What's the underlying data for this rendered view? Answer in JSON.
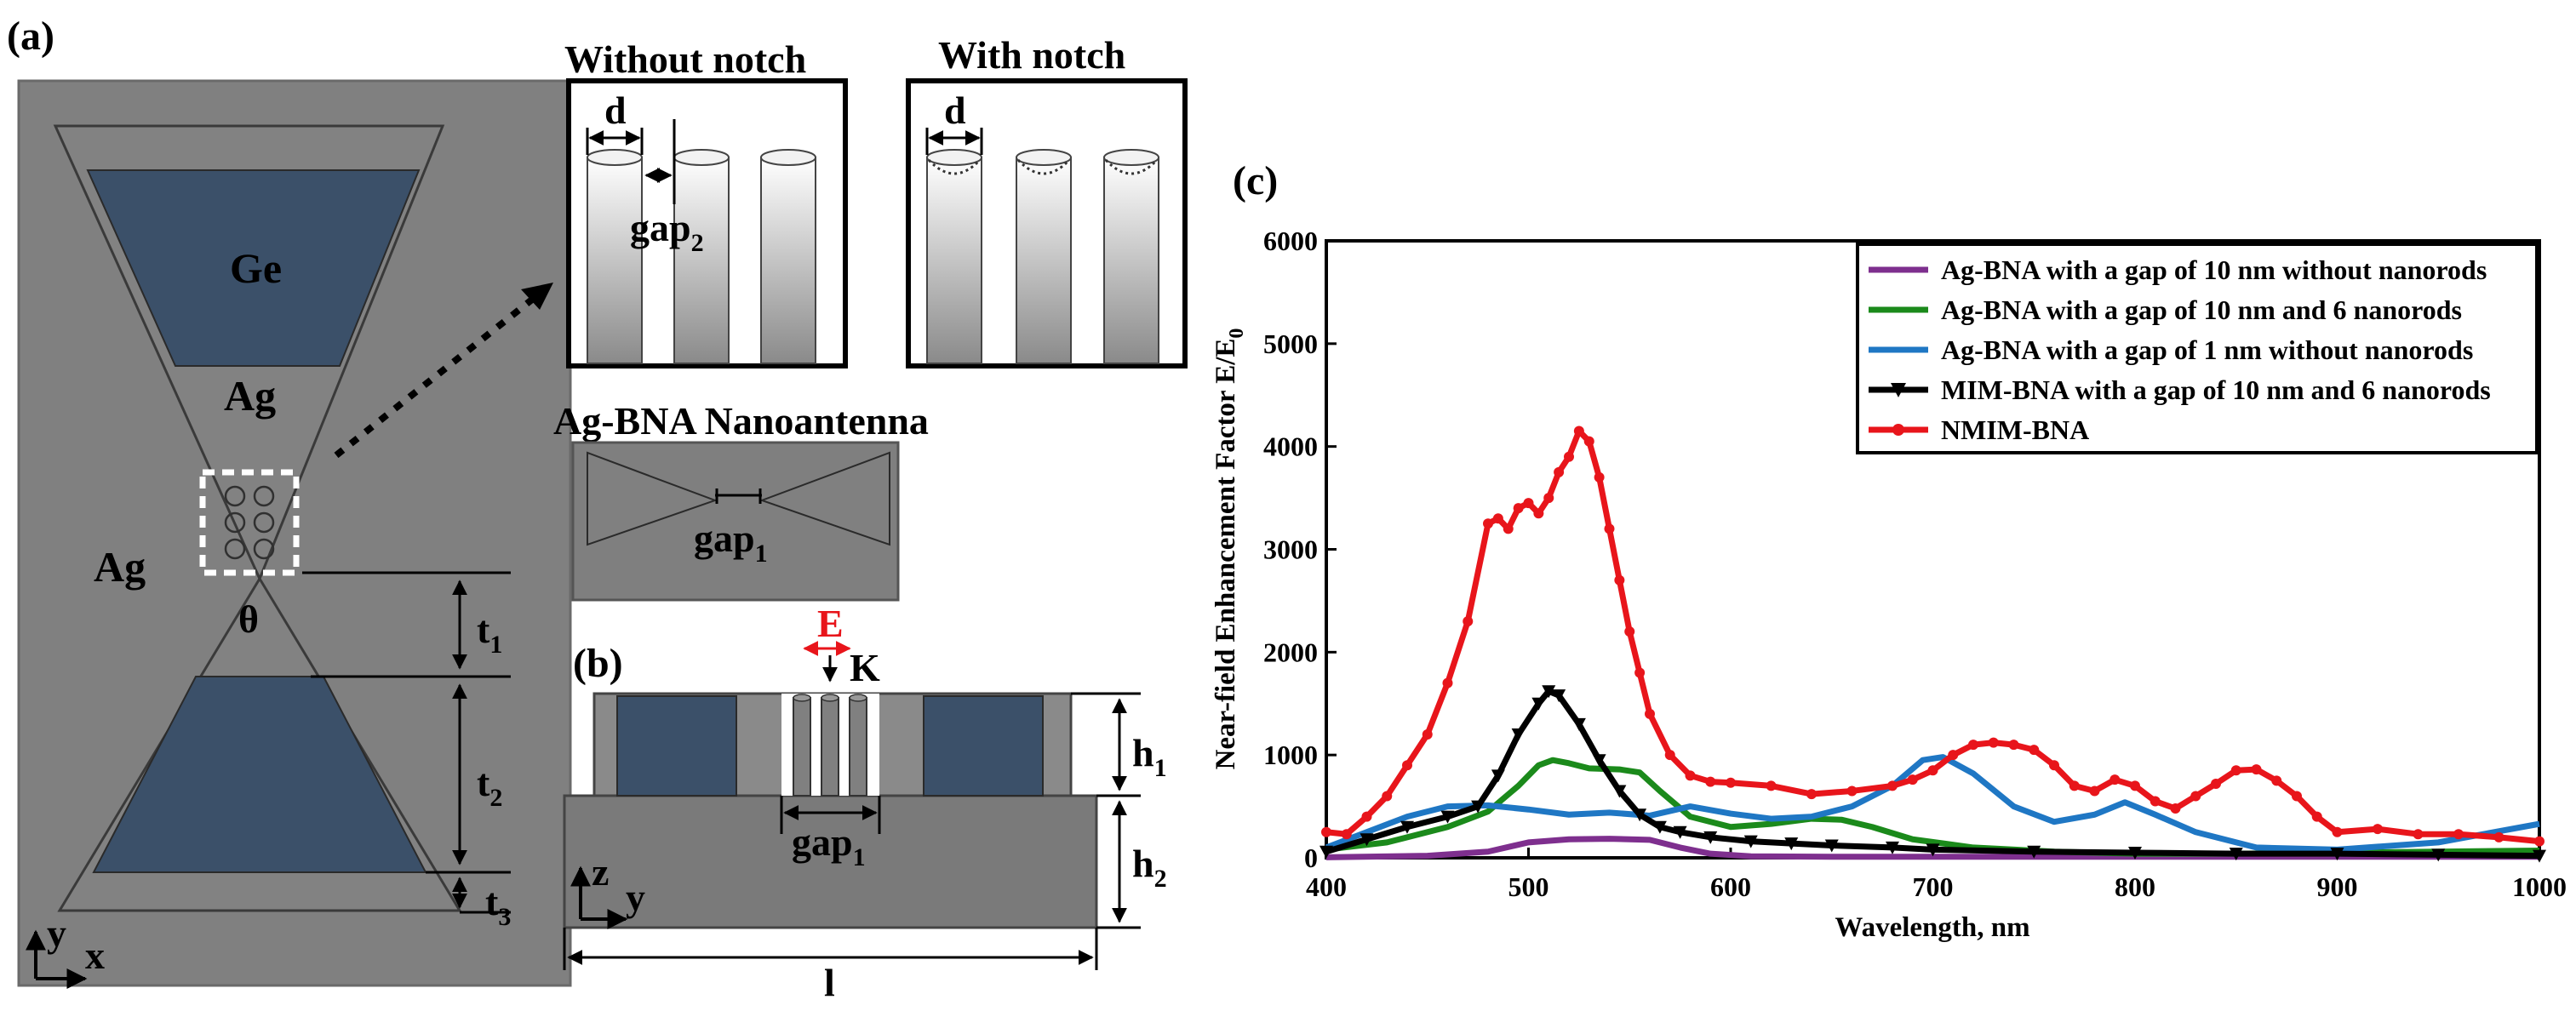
{
  "panel_a": {
    "label": "(a)",
    "ge_label": "Ge",
    "ag_top_label": "Ag",
    "ag_left_label": "Ag",
    "theta_label": "θ",
    "t1": "t",
    "t1_sub": "1",
    "t2": "t",
    "t2_sub": "2",
    "t3": "t",
    "t3_sub": "3",
    "axis_y": "y",
    "axis_x": "x"
  },
  "insets": {
    "without_notch_title": "Without notch",
    "with_notch_title": "With notch",
    "d_label": "d",
    "d_label_2": "d",
    "gap2": "gap",
    "gap2_sub": "2",
    "nanoantenna_title": "Ag-BNA Nanoantenna",
    "gap1_top": "gap",
    "gap1_top_sub": "1"
  },
  "panel_b": {
    "label": "(b)",
    "e_label": "E",
    "k_label": "K",
    "gap1": "gap",
    "gap1_sub": "1",
    "h1": "h",
    "h1_sub": "1",
    "h2": "h",
    "h2_sub": "2",
    "axis_z": "z",
    "axis_y": "y",
    "l_label": "l"
  },
  "colors": {
    "panel_gray": "#7f7f7f",
    "ge_blue": "#3b5069",
    "red": "#e8151b",
    "purple": "#7e2f8e",
    "green": "#1b8a1b",
    "blue": "#1f77c4",
    "black": "#000000"
  },
  "chart_data": {
    "label": "(c)",
    "type": "line",
    "xlabel": "Wavelength, nm",
    "ylabel": "Near-field Enhancement Factor E/E",
    "ylabel_sub": "0",
    "xlim": [
      400,
      1000
    ],
    "ylim": [
      0,
      6000
    ],
    "xticks": [
      "400",
      "500",
      "600",
      "700",
      "800",
      "900",
      "1000"
    ],
    "yticks": [
      "0",
      "1000",
      "2000",
      "3000",
      "4000",
      "5000",
      "6000"
    ],
    "legend_position": "top-right",
    "series": [
      {
        "name": "Ag-BNA with a gap of 10 nm without nanorods",
        "color": "#7e2f8e",
        "marker": "none",
        "x": [
          400,
          450,
          480,
          500,
          520,
          540,
          560,
          575,
          590,
          610,
          650,
          700,
          800,
          900,
          1000
        ],
        "y": [
          5,
          20,
          60,
          150,
          180,
          185,
          175,
          100,
          40,
          15,
          10,
          10,
          10,
          10,
          10
        ]
      },
      {
        "name": "Ag-BNA with a gap of 10 nm and 6 nanorods",
        "color": "#1b8a1b",
        "marker": "none",
        "x": [
          400,
          430,
          460,
          480,
          495,
          505,
          512,
          520,
          530,
          545,
          555,
          565,
          580,
          600,
          620,
          640,
          655,
          670,
          690,
          720,
          760,
          800,
          850,
          900,
          950,
          1000
        ],
        "y": [
          80,
          150,
          300,
          450,
          700,
          900,
          950,
          920,
          870,
          860,
          830,
          650,
          400,
          300,
          330,
          380,
          370,
          300,
          180,
          100,
          60,
          40,
          40,
          50,
          60,
          70
        ]
      },
      {
        "name": "Ag-BNA with a gap of 1 nm without nanorods",
        "color": "#1f77c4",
        "marker": "none",
        "x": [
          400,
          420,
          440,
          460,
          480,
          500,
          520,
          540,
          560,
          580,
          600,
          620,
          640,
          660,
          680,
          695,
          705,
          720,
          740,
          760,
          780,
          795,
          810,
          830,
          860,
          900,
          950,
          1000
        ],
        "y": [
          100,
          250,
          400,
          500,
          510,
          470,
          420,
          440,
          410,
          500,
          430,
          380,
          400,
          500,
          700,
          950,
          980,
          820,
          500,
          350,
          420,
          540,
          420,
          250,
          100,
          80,
          150,
          330
        ]
      },
      {
        "name": "MIM-BNA with a gap of 10 nm and 6 nanorods",
        "color": "#000000",
        "marker": "triangle-down",
        "x": [
          400,
          420,
          440,
          460,
          475,
          485,
          495,
          505,
          510,
          515,
          525,
          535,
          545,
          555,
          565,
          575,
          590,
          610,
          630,
          650,
          680,
          700,
          750,
          800,
          850,
          900,
          950,
          1000
        ],
        "y": [
          60,
          180,
          300,
          400,
          500,
          800,
          1200,
          1500,
          1620,
          1580,
          1300,
          950,
          650,
          420,
          300,
          250,
          200,
          160,
          140,
          120,
          100,
          80,
          60,
          50,
          40,
          40,
          30,
          20
        ]
      },
      {
        "name": "NMIM-BNA",
        "color": "#e8151b",
        "marker": "dot",
        "x": [
          400,
          410,
          420,
          430,
          440,
          450,
          460,
          470,
          480,
          485,
          490,
          495,
          500,
          505,
          510,
          515,
          520,
          525,
          530,
          535,
          540,
          545,
          550,
          555,
          560,
          570,
          580,
          590,
          600,
          620,
          640,
          660,
          680,
          690,
          700,
          710,
          720,
          730,
          740,
          750,
          760,
          770,
          780,
          790,
          800,
          810,
          820,
          830,
          840,
          850,
          860,
          870,
          880,
          890,
          900,
          920,
          940,
          960,
          980,
          1000
        ],
        "y": [
          250,
          230,
          400,
          600,
          900,
          1200,
          1700,
          2300,
          3250,
          3300,
          3200,
          3400,
          3450,
          3350,
          3500,
          3750,
          3900,
          4150,
          4050,
          3700,
          3200,
          2700,
          2200,
          1800,
          1400,
          1000,
          800,
          740,
          730,
          700,
          620,
          650,
          700,
          760,
          850,
          1000,
          1100,
          1120,
          1100,
          1050,
          900,
          700,
          650,
          760,
          700,
          550,
          480,
          600,
          720,
          850,
          860,
          750,
          600,
          400,
          250,
          280,
          230,
          230,
          200,
          160
        ]
      }
    ]
  }
}
